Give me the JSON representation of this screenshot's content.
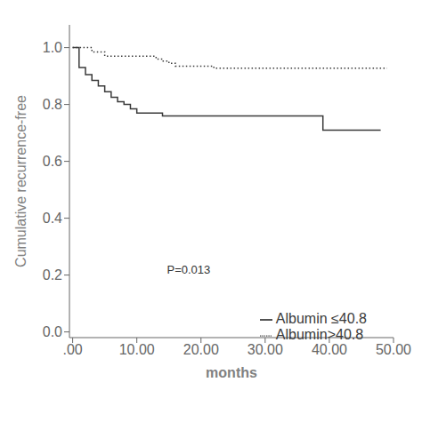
{
  "chart_data": {
    "type": "line",
    "xlabel": "months",
    "ylabel": "Cumulative recurrence-free",
    "xlim": [
      -0.5,
      50
    ],
    "ylim": [
      -0.02,
      1.08
    ],
    "xticks": [
      {
        "value": 0,
        "label": ".00"
      },
      {
        "value": 10,
        "label": "10.00"
      },
      {
        "value": 20,
        "label": "20.00"
      },
      {
        "value": 30,
        "label": "30.00"
      },
      {
        "value": 40,
        "label": "40.00"
      },
      {
        "value": 50,
        "label": "50.00"
      }
    ],
    "yticks": [
      {
        "value": 0,
        "label": "0.0"
      },
      0.2,
      0.4,
      0.6,
      0.8,
      {
        "value": 1,
        "label": "1.0"
      }
    ],
    "grid": false,
    "legend": "lower right",
    "annotations": [
      {
        "text": "P=0.013",
        "x": 14,
        "y": 0.22
      }
    ],
    "series": [
      {
        "name": "Albumin ≤40.8",
        "color": "#3a3a3a",
        "line_style": "solid",
        "x": [
          0,
          1,
          1,
          2,
          2,
          3,
          3,
          4,
          4,
          5,
          5,
          6,
          6,
          7,
          7,
          8,
          8,
          9,
          9,
          10,
          10,
          14,
          14,
          39,
          39,
          41,
          41,
          48
        ],
        "values": [
          1.0,
          1.0,
          0.93,
          0.93,
          0.905,
          0.905,
          0.885,
          0.885,
          0.865,
          0.865,
          0.845,
          0.845,
          0.825,
          0.825,
          0.81,
          0.81,
          0.8,
          0.8,
          0.785,
          0.785,
          0.77,
          0.77,
          0.76,
          0.76,
          0.71,
          0.71,
          0.71,
          0.71
        ]
      },
      {
        "name": "Albumin>40.8",
        "color": "#3a3a3a",
        "line_style": "dotted",
        "x": [
          0,
          3,
          3,
          5,
          5,
          13,
          13,
          14,
          14,
          15,
          15,
          16,
          16,
          22,
          22,
          49
        ],
        "values": [
          1.0,
          1.0,
          0.985,
          0.985,
          0.97,
          0.97,
          0.96,
          0.96,
          0.953,
          0.953,
          0.945,
          0.945,
          0.935,
          0.935,
          0.928,
          0.928
        ]
      }
    ]
  }
}
